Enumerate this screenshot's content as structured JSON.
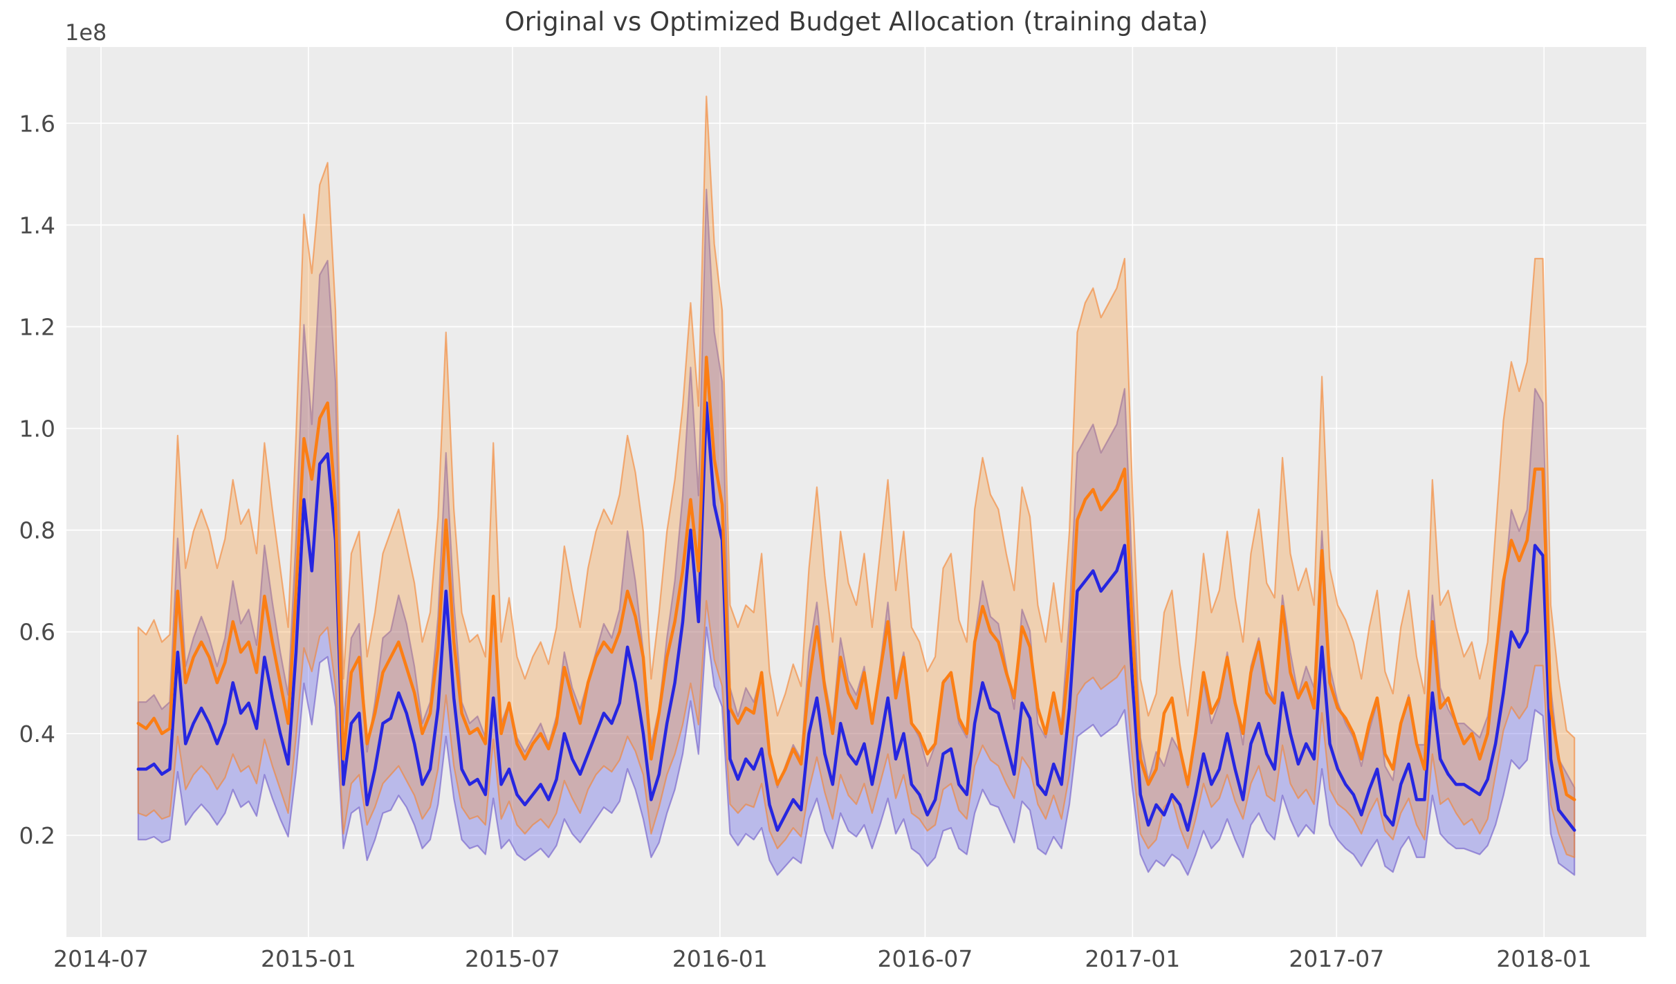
{
  "figure": {
    "background": "#ffffff",
    "plot_background": "#ececec",
    "grid_color": "#ffffff",
    "tick_label_color": "#4a4a4a",
    "title_color": "#3a3a3a"
  },
  "chart_data": {
    "type": "line",
    "title": "Original vs Optimized Budget Allocation (training data)",
    "y_offset_label": "1e8",
    "y_unit": "1e8",
    "xlabel": "",
    "ylabel": "",
    "grid": true,
    "legend": "none",
    "ylim": [
      0,
      1.75
    ],
    "y_ticks": [
      0.2,
      0.4,
      0.6,
      0.8,
      1.0,
      1.2,
      1.4,
      1.6
    ],
    "y_tick_labels": [
      "0.2",
      "0.4",
      "0.6",
      "0.8",
      "1.0",
      "1.2",
      "1.4",
      "1.6"
    ],
    "x_tick_dates": [
      "2014-07-01",
      "2015-01-01",
      "2015-07-01",
      "2016-01-01",
      "2016-07-01",
      "2017-01-01",
      "2017-07-01",
      "2018-01-01"
    ],
    "x_tick_labels": [
      "2014-07",
      "2015-01",
      "2015-07",
      "2016-01",
      "2016-07",
      "2017-01",
      "2017-07",
      "2018-01"
    ],
    "x_start_date": "2014-08-03",
    "x_interval_days": 7,
    "n_points": 183,
    "x_margin_frac": 0.05,
    "series": [
      {
        "name": "Original",
        "color": "#2626e0",
        "line_width": 4.5,
        "band_fill": "rgba(70,70,230,0.30)",
        "band_edge": "rgba(110,90,200,0.60)",
        "band_lower_factor": 0.58,
        "band_upper_factor": 1.4,
        "values": [
          0.33,
          0.33,
          0.34,
          0.32,
          0.33,
          0.56,
          0.38,
          0.42,
          0.45,
          0.42,
          0.38,
          0.42,
          0.5,
          0.44,
          0.46,
          0.41,
          0.55,
          0.47,
          0.4,
          0.34,
          0.56,
          0.86,
          0.72,
          0.93,
          0.95,
          0.78,
          0.3,
          0.42,
          0.44,
          0.26,
          0.33,
          0.42,
          0.43,
          0.48,
          0.44,
          0.38,
          0.3,
          0.33,
          0.45,
          0.68,
          0.47,
          0.33,
          0.3,
          0.31,
          0.28,
          0.47,
          0.3,
          0.33,
          0.28,
          0.26,
          0.28,
          0.3,
          0.27,
          0.31,
          0.4,
          0.35,
          0.32,
          0.36,
          0.4,
          0.44,
          0.42,
          0.46,
          0.57,
          0.5,
          0.4,
          0.27,
          0.32,
          0.42,
          0.5,
          0.62,
          0.8,
          0.62,
          1.05,
          0.85,
          0.78,
          0.35,
          0.31,
          0.35,
          0.33,
          0.37,
          0.26,
          0.21,
          0.24,
          0.27,
          0.25,
          0.4,
          0.47,
          0.36,
          0.3,
          0.42,
          0.36,
          0.34,
          0.38,
          0.3,
          0.38,
          0.47,
          0.35,
          0.4,
          0.3,
          0.28,
          0.24,
          0.27,
          0.36,
          0.37,
          0.3,
          0.28,
          0.42,
          0.5,
          0.45,
          0.44,
          0.38,
          0.32,
          0.46,
          0.43,
          0.3,
          0.28,
          0.34,
          0.3,
          0.45,
          0.68,
          0.7,
          0.72,
          0.68,
          0.7,
          0.72,
          0.77,
          0.5,
          0.28,
          0.22,
          0.26,
          0.24,
          0.28,
          0.26,
          0.21,
          0.28,
          0.36,
          0.3,
          0.33,
          0.4,
          0.33,
          0.27,
          0.38,
          0.42,
          0.36,
          0.33,
          0.48,
          0.4,
          0.34,
          0.38,
          0.35,
          0.57,
          0.38,
          0.33,
          0.3,
          0.28,
          0.24,
          0.29,
          0.33,
          0.24,
          0.22,
          0.3,
          0.34,
          0.27,
          0.27,
          0.48,
          0.35,
          0.32,
          0.3,
          0.3,
          0.29,
          0.28,
          0.31,
          0.38,
          0.48,
          0.6,
          0.57,
          0.6,
          0.77,
          0.75,
          0.35,
          0.25,
          0.23,
          0.21
        ]
      },
      {
        "name": "Optimized",
        "color": "#fb7e14",
        "line_width": 4.5,
        "band_fill": "rgba(247,152,58,0.33)",
        "band_edge": "rgba(243,130,47,0.60)",
        "band_lower_factor": 0.58,
        "band_upper_factor": 1.45,
        "values": [
          0.42,
          0.41,
          0.43,
          0.4,
          0.41,
          0.68,
          0.5,
          0.55,
          0.58,
          0.55,
          0.5,
          0.54,
          0.62,
          0.56,
          0.58,
          0.52,
          0.67,
          0.58,
          0.5,
          0.42,
          0.68,
          0.98,
          0.9,
          1.02,
          1.05,
          0.85,
          0.35,
          0.52,
          0.55,
          0.38,
          0.44,
          0.52,
          0.55,
          0.58,
          0.53,
          0.48,
          0.4,
          0.44,
          0.57,
          0.82,
          0.58,
          0.44,
          0.4,
          0.41,
          0.38,
          0.67,
          0.4,
          0.46,
          0.38,
          0.35,
          0.38,
          0.4,
          0.37,
          0.42,
          0.53,
          0.47,
          0.42,
          0.5,
          0.55,
          0.58,
          0.56,
          0.6,
          0.68,
          0.63,
          0.55,
          0.35,
          0.44,
          0.55,
          0.62,
          0.72,
          0.86,
          0.72,
          1.14,
          0.94,
          0.85,
          0.45,
          0.42,
          0.45,
          0.44,
          0.52,
          0.36,
          0.3,
          0.33,
          0.37,
          0.34,
          0.5,
          0.61,
          0.49,
          0.4,
          0.55,
          0.48,
          0.45,
          0.52,
          0.42,
          0.52,
          0.62,
          0.47,
          0.55,
          0.42,
          0.4,
          0.36,
          0.38,
          0.5,
          0.52,
          0.43,
          0.4,
          0.58,
          0.65,
          0.6,
          0.58,
          0.52,
          0.47,
          0.61,
          0.57,
          0.45,
          0.4,
          0.48,
          0.4,
          0.55,
          0.82,
          0.86,
          0.88,
          0.84,
          0.86,
          0.88,
          0.92,
          0.6,
          0.35,
          0.3,
          0.33,
          0.44,
          0.47,
          0.37,
          0.3,
          0.4,
          0.52,
          0.44,
          0.47,
          0.55,
          0.46,
          0.4,
          0.52,
          0.58,
          0.48,
          0.46,
          0.65,
          0.52,
          0.47,
          0.5,
          0.45,
          0.76,
          0.5,
          0.45,
          0.43,
          0.4,
          0.35,
          0.42,
          0.47,
          0.36,
          0.33,
          0.42,
          0.47,
          0.38,
          0.33,
          0.62,
          0.45,
          0.47,
          0.42,
          0.38,
          0.4,
          0.35,
          0.4,
          0.55,
          0.7,
          0.78,
          0.74,
          0.78,
          0.92,
          0.92,
          0.45,
          0.35,
          0.28,
          0.27
        ]
      }
    ]
  }
}
